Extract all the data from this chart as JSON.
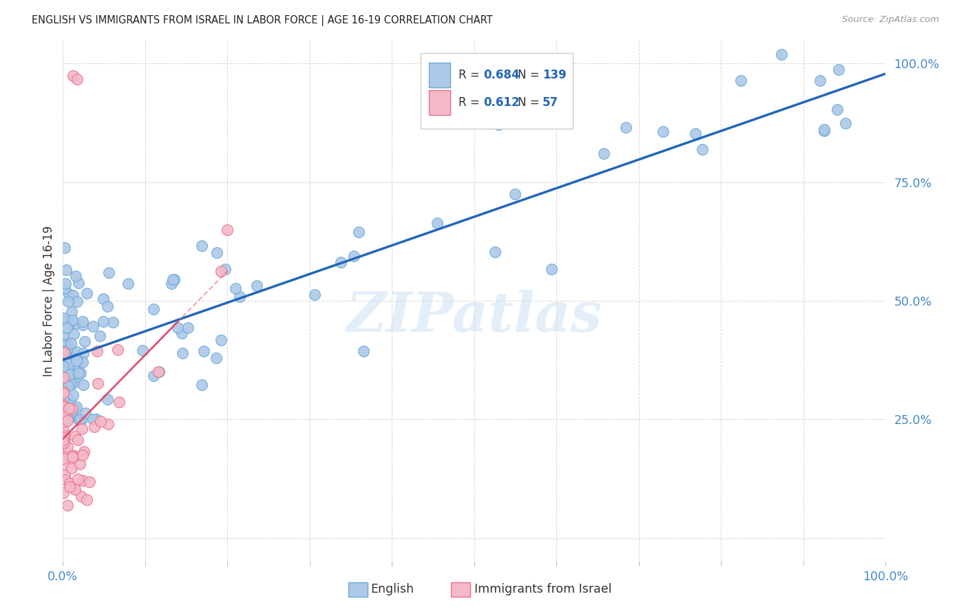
{
  "title": "ENGLISH VS IMMIGRANTS FROM ISRAEL IN LABOR FORCE | AGE 16-19 CORRELATION CHART",
  "source": "Source: ZipAtlas.com",
  "ylabel": "In Labor Force | Age 16-19",
  "xmin": 0.0,
  "xmax": 1.0,
  "ymin": -0.05,
  "ymax": 1.05,
  "english_color": "#adc8e8",
  "israel_color": "#f5b8c8",
  "english_edge_color": "#6aaad4",
  "israel_edge_color": "#e8708a",
  "regression_english_color": "#2266bb",
  "regression_israel_color": "#e05070",
  "R_english": 0.684,
  "N_english": 139,
  "R_israel": 0.612,
  "N_israel": 57,
  "legend_label_english": "English",
  "legend_label_israel": "Immigrants from Israel",
  "watermark": "ZIPatlas",
  "background_color": "#ffffff",
  "grid_color": "#cccccc",
  "title_color": "#222222",
  "axis_label_color": "#4488cc",
  "legend_text_color": "#222222",
  "legend_value_color": "#2266bb"
}
